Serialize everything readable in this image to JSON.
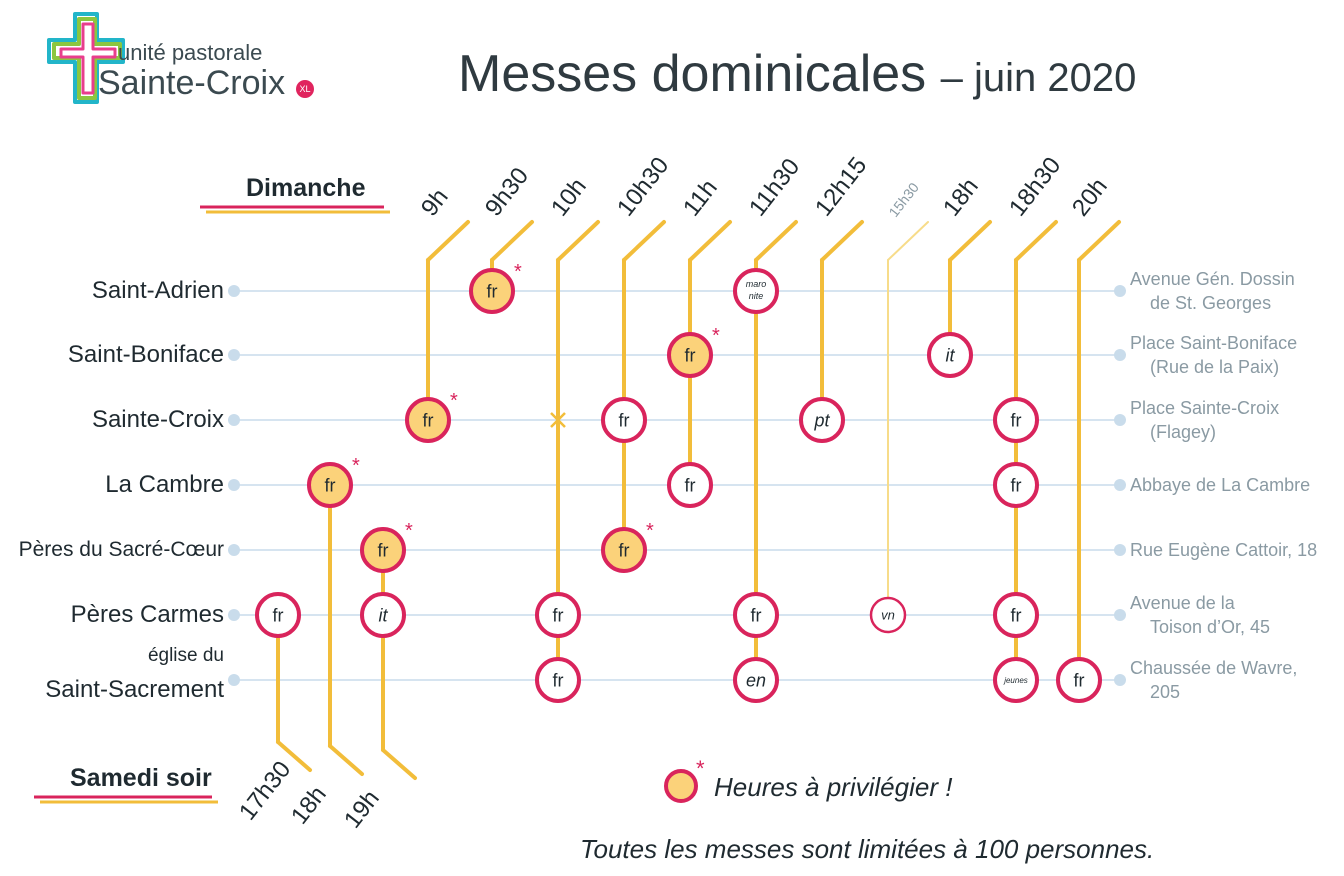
{
  "header": {
    "logo_subtitle": "unité pastorale",
    "logo_name": "Sainte-Croix",
    "logo_badge": "XL",
    "title": "Messes dominicales",
    "title_suffix": "– juin 2020"
  },
  "sections": {
    "sunday": "Dimanche",
    "saturday": "Samedi soir"
  },
  "churches": [
    {
      "name": "Saint-Adrien",
      "name_line2": "",
      "address": "Avenue Gén. Dossin",
      "address_line2": "de St. Georges"
    },
    {
      "name": "Saint-Boniface",
      "name_line2": "",
      "address": "Place Saint-Boniface",
      "address_line2": "(Rue de la Paix)"
    },
    {
      "name": "Sainte-Croix",
      "name_line2": "",
      "address": "Place Sainte-Croix",
      "address_line2": "(Flagey)"
    },
    {
      "name": "La Cambre",
      "name_line2": "",
      "address": "Abbaye de La Cambre",
      "address_line2": ""
    },
    {
      "name": "Pères du Sacré-Cœur",
      "name_line2": "",
      "address": "Rue Eugène Cattoir, 18",
      "address_line2": ""
    },
    {
      "name": "Pères Carmes",
      "name_line2": "",
      "address": "Avenue de la",
      "address_line2": "Toison d’Or, 45"
    },
    {
      "name": "église du",
      "name_line2": "Saint-Sacrement",
      "address": "Chaussée de Wavre,",
      "address_line2": "205"
    }
  ],
  "sunday_times": [
    "9h",
    "9h30",
    "10h",
    "10h30",
    "11h",
    "11h30",
    "12h15",
    "15h30",
    "18h",
    "18h30",
    "20h"
  ],
  "saturday_times": [
    "17h30",
    "18h",
    "19h"
  ],
  "masses": [
    {
      "day": "sat",
      "time": "17h30",
      "church": 5,
      "label": "fr",
      "preferred": false
    },
    {
      "day": "sat",
      "time": "18h",
      "church": 3,
      "label": "fr",
      "preferred": true
    },
    {
      "day": "sat",
      "time": "19h",
      "church": 4,
      "label": "fr",
      "preferred": true
    },
    {
      "day": "sat",
      "time": "19h",
      "church": 5,
      "label": "it",
      "preferred": false
    },
    {
      "day": "sun",
      "time": "9h",
      "church": 2,
      "label": "fr",
      "preferred": true
    },
    {
      "day": "sun",
      "time": "9h30",
      "church": 0,
      "label": "fr",
      "preferred": true
    },
    {
      "day": "sun",
      "time": "10h",
      "church": 5,
      "label": "fr",
      "preferred": false
    },
    {
      "day": "sun",
      "time": "10h",
      "church": 6,
      "label": "fr",
      "preferred": false
    },
    {
      "day": "sun",
      "time": "10h30",
      "church": 2,
      "label": "fr",
      "preferred": false
    },
    {
      "day": "sun",
      "time": "10h30",
      "church": 4,
      "label": "fr",
      "preferred": true
    },
    {
      "day": "sun",
      "time": "11h",
      "church": 1,
      "label": "fr",
      "preferred": true
    },
    {
      "day": "sun",
      "time": "11h",
      "church": 3,
      "label": "fr",
      "preferred": false
    },
    {
      "day": "sun",
      "time": "11h30",
      "church": 0,
      "label": "maro nite",
      "preferred": false
    },
    {
      "day": "sun",
      "time": "11h30",
      "church": 5,
      "label": "fr",
      "preferred": false
    },
    {
      "day": "sun",
      "time": "11h30",
      "church": 6,
      "label": "en",
      "preferred": false
    },
    {
      "day": "sun",
      "time": "12h15",
      "church": 2,
      "label": "pt",
      "preferred": false
    },
    {
      "day": "sun",
      "time": "15h30",
      "church": 5,
      "label": "vn",
      "preferred": false
    },
    {
      "day": "sun",
      "time": "18h",
      "church": 1,
      "label": "it",
      "preferred": false
    },
    {
      "day": "sun",
      "time": "18h30",
      "church": 2,
      "label": "fr",
      "preferred": false
    },
    {
      "day": "sun",
      "time": "18h30",
      "church": 3,
      "label": "fr",
      "preferred": false
    },
    {
      "day": "sun",
      "time": "18h30",
      "church": 5,
      "label": "fr",
      "preferred": false
    },
    {
      "day": "sun",
      "time": "18h30",
      "church": 6,
      "label": "jeunes",
      "preferred": false
    },
    {
      "day": "sun",
      "time": "20h",
      "church": 6,
      "label": "fr",
      "preferred": false
    }
  ],
  "legend": {
    "marker": "*",
    "text": "Heures à privilégier !"
  },
  "footer_note": "Toutes les messes sont limitées à 100 personnes.",
  "colors": {
    "line": "#f2bd3a",
    "line_faint": "#f7dc8a",
    "track": "#c9dceb",
    "ring": "#d9245c",
    "preferred_fill": "#fbd27a",
    "text": "#2f3a40",
    "address": "#8a9aa3"
  }
}
